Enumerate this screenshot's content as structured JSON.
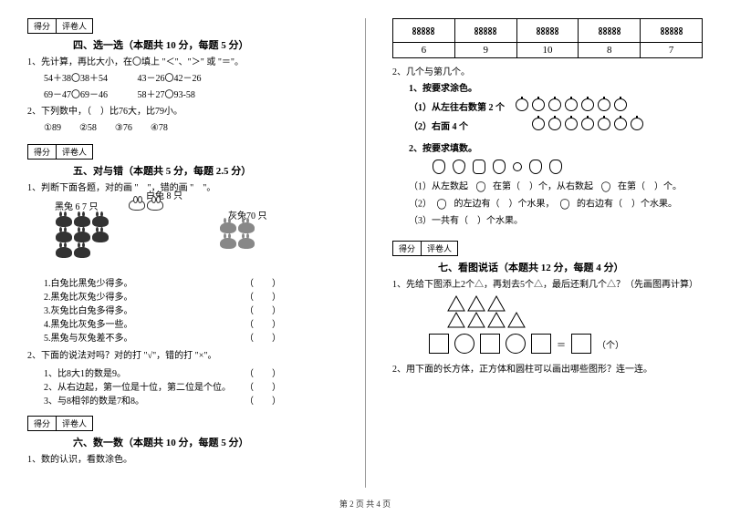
{
  "scorebox": {
    "score": "得分",
    "grader": "评卷人"
  },
  "s4": {
    "title": "四、选一选（本题共 10 分，每题 5 分）",
    "q1_text": "1、先计算，再比大小，在〇填上 \"＜\"、\"＞\" 或 \"＝\"。",
    "q1_a": "54＋38〇38＋54",
    "q1_b": "43－26〇42－26",
    "q1_c": "69－47〇69－46",
    "q1_d": "58＋27〇93-58",
    "q2_text": "2、下列数中，（　）比76大，比79小。",
    "q2_opts": "①89　　②58　　③76　　④78"
  },
  "s5": {
    "title": "五、对与错（本题共 5 分，每题 2.5 分）",
    "q1_text": "1、判断下面各题，对的画 \"　\"，错的画 \"　\"。",
    "white_label": "白兔 8 只",
    "black_label": "黑兔 6 7 只",
    "gray_label": "灰兔70 只",
    "lines": [
      "1.白兔比黑兔少得多。",
      "2.黑兔比灰兔少得多。",
      "3.灰兔比白兔多得多。",
      "4.黑兔比灰兔多一些。",
      "5.黑兔与灰兔差不多。"
    ],
    "q2_text": "2、下面的说法对吗？对的打 \"√\"，错的打 \"×\"。",
    "q2_lines": [
      "1、比8大1的数是9。",
      "2、从右边起，第一位是十位，第二位是个位。",
      "3、与8相邻的数是7和8。"
    ]
  },
  "s6": {
    "title": "六、数一数（本题共 10 分，每题 5 分）",
    "q1_text": "1、数的认识，看数涂色。",
    "nums": [
      "6",
      "9",
      "10",
      "8",
      "7"
    ],
    "q2_text": "2、几个与第几个。",
    "q2_1": "1、按要求涂色。",
    "q2_1a": "（1）从左往右数第 2 个",
    "q2_1b": "（2）右面 4 个",
    "q2_2": "2、按要求填数。",
    "q2_2a": "（1）从左数起　　在第（　）个，从右数起　　在第（　）个。",
    "q2_2b": "（2）　　的左边有（　）个水果，　　的右边有（　）个水果。",
    "q2_2c": "（3）一共有（　）个水果。"
  },
  "s7": {
    "title": "七、看图说话（本题共 12 分，每题 4 分）",
    "q1_text": "1、先给下图添上2个△，再划去5个△，最后还剩几个△？（先画图再计算）",
    "eq_suffix": "（个）",
    "q2_text": "2、用下面的长方体，正方体和圆柱可以画出哪些图形？连一连。"
  },
  "footer": "第 2 页 共 4 页"
}
